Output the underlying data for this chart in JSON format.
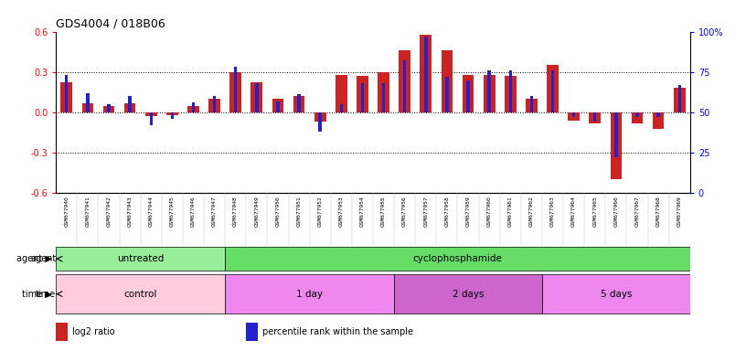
{
  "title": "GDS4004 / 018B06",
  "samples": [
    "GSM677940",
    "GSM677941",
    "GSM677942",
    "GSM677943",
    "GSM677944",
    "GSM677945",
    "GSM677946",
    "GSM677947",
    "GSM677948",
    "GSM677949",
    "GSM677950",
    "GSM677951",
    "GSM677952",
    "GSM677953",
    "GSM677954",
    "GSM677955",
    "GSM677956",
    "GSM677957",
    "GSM677958",
    "GSM677959",
    "GSM677960",
    "GSM677961",
    "GSM677962",
    "GSM677963",
    "GSM677964",
    "GSM677965",
    "GSM677966",
    "GSM677967",
    "GSM677968",
    "GSM677969"
  ],
  "log2_ratio": [
    0.22,
    0.07,
    0.05,
    0.07,
    -0.03,
    -0.02,
    0.05,
    0.1,
    0.3,
    0.22,
    0.1,
    0.12,
    -0.07,
    0.28,
    0.27,
    0.3,
    0.46,
    0.58,
    0.46,
    0.28,
    0.28,
    0.27,
    0.1,
    0.35,
    -0.06,
    -0.08,
    -0.5,
    -0.08,
    -0.12,
    0.18
  ],
  "percentile": [
    73,
    62,
    55,
    60,
    42,
    46,
    56,
    60,
    78,
    68,
    57,
    61,
    38,
    55,
    68,
    68,
    82,
    97,
    72,
    70,
    76,
    76,
    60,
    76,
    47,
    44,
    22,
    47,
    47,
    67
  ],
  "agent_groups": [
    {
      "label": "untreated",
      "start": 0,
      "end": 8,
      "color": "#99EE99"
    },
    {
      "label": "cyclophosphamide",
      "start": 8,
      "end": 30,
      "color": "#66DD66"
    }
  ],
  "time_groups": [
    {
      "label": "control",
      "start": 0,
      "end": 8,
      "color": "#FFCCDD"
    },
    {
      "label": "1 day",
      "start": 8,
      "end": 16,
      "color": "#EE88EE"
    },
    {
      "label": "2 days",
      "start": 16,
      "end": 23,
      "color": "#CC66CC"
    },
    {
      "label": "5 days",
      "start": 23,
      "end": 30,
      "color": "#EE88EE"
    }
  ],
  "ylim": [
    -0.6,
    0.6
  ],
  "y2lim": [
    0,
    100
  ],
  "yticks": [
    -0.6,
    -0.3,
    0.0,
    0.3,
    0.6
  ],
  "y2ticks": [
    0,
    25,
    50,
    75,
    100
  ],
  "hlines": [
    0.3,
    0.0,
    -0.3
  ],
  "bar_color_red": "#CC2222",
  "bar_color_blue": "#2222CC",
  "legend_items": [
    {
      "label": "log2 ratio",
      "color": "#CC2222"
    },
    {
      "label": "percentile rank within the sample",
      "color": "#2222CC"
    }
  ]
}
